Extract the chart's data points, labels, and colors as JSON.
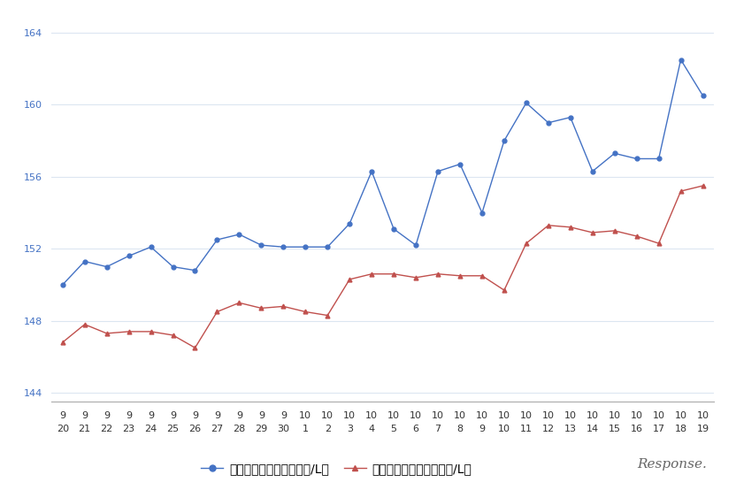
{
  "x_labels_row1": [
    "9",
    "9",
    "9",
    "9",
    "9",
    "9",
    "9",
    "9",
    "9",
    "9",
    "9",
    "10",
    "10",
    "10",
    "10",
    "10",
    "10",
    "10",
    "10",
    "10",
    "10",
    "10",
    "10",
    "10",
    "10",
    "10",
    "10",
    "10",
    "10",
    "10"
  ],
  "x_labels_row2": [
    "20",
    "21",
    "22",
    "23",
    "24",
    "25",
    "26",
    "27",
    "28",
    "29",
    "30",
    "1",
    "2",
    "3",
    "4",
    "5",
    "6",
    "7",
    "8",
    "9",
    "10",
    "11",
    "12",
    "13",
    "14",
    "15",
    "16",
    "17",
    "18",
    "19"
  ],
  "blue_values": [
    150.0,
    151.3,
    151.0,
    151.6,
    152.1,
    151.0,
    150.8,
    152.5,
    152.8,
    152.2,
    152.1,
    152.1,
    152.1,
    153.4,
    156.3,
    153.1,
    152.2,
    156.3,
    156.7,
    154.0,
    158.0,
    160.1,
    159.0,
    159.3,
    156.3,
    157.3,
    157.0,
    157.0,
    162.5,
    160.5
  ],
  "red_values": [
    146.8,
    147.8,
    147.3,
    147.4,
    147.4,
    147.2,
    146.5,
    148.5,
    149.0,
    148.7,
    148.8,
    148.5,
    148.3,
    150.3,
    150.6,
    150.6,
    150.4,
    150.6,
    150.5,
    150.5,
    149.7,
    152.3,
    153.3,
    153.2,
    152.9,
    153.0,
    152.7,
    152.3,
    155.2,
    155.5
  ],
  "blue_color": "#4472c4",
  "red_color": "#c0504d",
  "ylim_min": 143.5,
  "ylim_max": 165.0,
  "yticks": [
    144,
    148,
    152,
    156,
    160,
    164
  ],
  "ytick_color": "#4472c4",
  "background_color": "#ffffff",
  "grid_color": "#dce6f1",
  "legend_blue": "レギュラー看板価格（円/L）",
  "legend_red": "レギュラー実売価格（円/L）",
  "watermark": "Response.",
  "tick_fontsize": 8,
  "legend_fontsize": 9
}
